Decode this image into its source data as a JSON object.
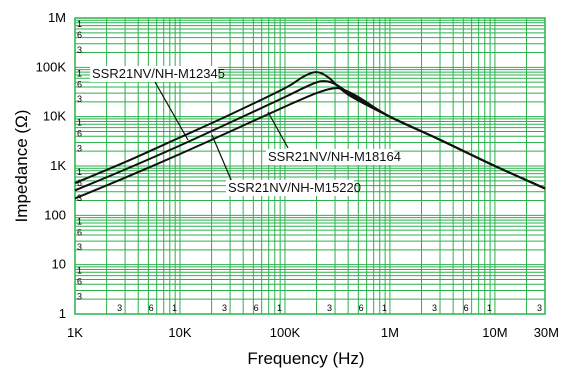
{
  "chart_data": {
    "type": "line",
    "xlabel": "Frequency (Hz)",
    "ylabel": "Impedance (Ω)",
    "x_scale": "log",
    "y_scale": "log",
    "xlim": [
      1000,
      30000000
    ],
    "ylim": [
      1,
      1000000
    ],
    "grid": true,
    "grid_color": "#2bb24c",
    "x_tick_labels": [
      "1K",
      "10K",
      "100K",
      "1M",
      "10M",
      "30M"
    ],
    "x_tick_values": [
      1000,
      10000,
      100000,
      1000000,
      10000000,
      30000000
    ],
    "y_tick_labels": [
      "1",
      "10",
      "100",
      "1K",
      "10K",
      "100K",
      "1M"
    ],
    "y_tick_values": [
      1,
      10,
      100,
      1000,
      10000,
      100000,
      1000000
    ],
    "x_minor_labels": [
      "3",
      "6",
      "1",
      "3",
      "6",
      "1",
      "3",
      "6",
      "1",
      "3",
      "6",
      "1",
      "3"
    ],
    "y_minor_labels": [
      "1",
      "6",
      "3",
      "1",
      "6",
      "3",
      "1",
      "6",
      "3",
      "1",
      "6",
      "3",
      "1",
      "6",
      "3",
      "1",
      "6",
      "3"
    ],
    "series": [
      {
        "name": "SSR21NV/NH-M12345",
        "x": [
          1000,
          3000,
          10000,
          30000,
          100000,
          150000,
          200000,
          260000,
          400000,
          1000000,
          3000000,
          10000000,
          30000000
        ],
        "y": [
          450,
          1200,
          3800,
          11000,
          38000,
          65000,
          80000,
          62000,
          28000,
          10000,
          3400,
          1000,
          350
        ]
      },
      {
        "name": "SSR21NV/NH-M18164",
        "x": [
          1000,
          3000,
          10000,
          30000,
          100000,
          150000,
          220000,
          300000,
          450000,
          1000000,
          3000000,
          10000000,
          30000000
        ],
        "y": [
          320,
          850,
          2600,
          7600,
          25000,
          38000,
          52000,
          46000,
          26000,
          10000,
          3400,
          1000,
          350
        ]
      },
      {
        "name": "SSR21NV/NH-M15220",
        "x": [
          1000,
          3000,
          10000,
          30000,
          100000,
          200000,
          280000,
          350000,
          500000,
          1000000,
          3000000,
          10000000,
          30000000
        ],
        "y": [
          220,
          580,
          1750,
          5000,
          16000,
          30000,
          37000,
          36000,
          25000,
          10000,
          3400,
          1000,
          350
        ]
      }
    ],
    "annotations": [
      {
        "text": "SSR21NV/NH-M12345",
        "series": 0
      },
      {
        "text": "SSR21NV/NH-M18164",
        "series": 1
      },
      {
        "text": "SSR21NV/NH-M15220",
        "series": 2
      }
    ]
  }
}
